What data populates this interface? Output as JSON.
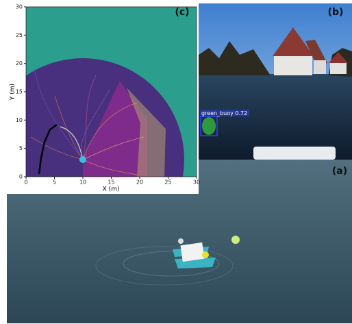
{
  "panels": {
    "a": {
      "label": "(a)"
    },
    "b": {
      "label": "(b)",
      "detection": "green_buoy 0.72"
    },
    "c": {
      "label": "(c)"
    }
  },
  "chart_data": {
    "type": "line",
    "xlabel": "X (m)",
    "ylabel": "Y (m)",
    "xlim": [
      0,
      30
    ],
    "ylim": [
      0,
      30
    ],
    "xticks": [
      0,
      5,
      10,
      15,
      20,
      25,
      30
    ],
    "yticks": [
      0,
      5,
      10,
      15,
      20,
      25,
      30
    ],
    "series": [
      {
        "color": "#000000",
        "x": [
          2.3,
          2.6,
          3.2,
          4.2,
          5.4
        ],
        "values": [
          0.5,
          3,
          6,
          8.3,
          9.2
        ]
      }
    ]
  }
}
